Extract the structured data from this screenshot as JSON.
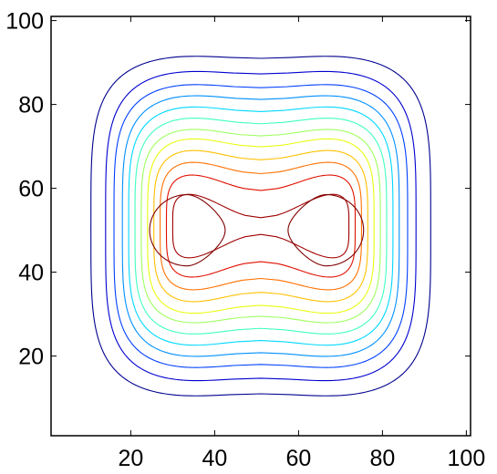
{
  "chart_data": {
    "type": "contour",
    "title": "",
    "xlabel": "",
    "ylabel": "",
    "xlim": [
      1,
      101
    ],
    "ylim": [
      1,
      101
    ],
    "xticks": [
      20,
      40,
      60,
      80,
      100
    ],
    "yticks": [
      20,
      40,
      60,
      80,
      100
    ],
    "x_tick_labels": [
      "20",
      "40",
      "60",
      "80",
      "100"
    ],
    "y_tick_labels": [
      "20",
      "40",
      "60",
      "80",
      "100"
    ],
    "colormap": "jet",
    "grid": false,
    "legend": "none",
    "contours": [
      {
        "level_index": 1,
        "color": "#00008f",
        "x_half_width": 40.5,
        "y_half_width": 41.0,
        "peanut": 1.0
      },
      {
        "level_index": 2,
        "color": "#0000cf",
        "x_half_width": 37.0,
        "y_half_width": 37.5,
        "peanut": 1.2
      },
      {
        "level_index": 3,
        "color": "#0040ff",
        "x_half_width": 35.0,
        "y_half_width": 34.5,
        "peanut": 1.5
      },
      {
        "level_index": 4,
        "color": "#0090ff",
        "x_half_width": 33.0,
        "y_half_width": 32.0,
        "peanut": 1.8
      },
      {
        "level_index": 5,
        "color": "#00d8ff",
        "x_half_width": 31.5,
        "y_half_width": 29.5,
        "peanut": 2.2
      },
      {
        "level_index": 6,
        "color": "#40ffbf",
        "x_half_width": 30.0,
        "y_half_width": 27.0,
        "peanut": 2.6
      },
      {
        "level_index": 7,
        "color": "#9fff60",
        "x_half_width": 28.5,
        "y_half_width": 24.5,
        "peanut": 3.0
      },
      {
        "level_index": 8,
        "color": "#e8ff10",
        "x_half_width": 27.0,
        "y_half_width": 22.5,
        "peanut": 3.6
      },
      {
        "level_index": 9,
        "color": "#ffc000",
        "x_half_width": 25.5,
        "y_half_width": 20.0,
        "peanut": 4.2
      },
      {
        "level_index": 10,
        "color": "#ff7000",
        "x_half_width": 24.0,
        "y_half_width": 17.5,
        "peanut": 5.0
      },
      {
        "level_index": 11,
        "color": "#e01000",
        "x_half_width": 22.5,
        "y_half_width": 15.0,
        "peanut": 6.5
      },
      {
        "level_index": 12,
        "color": "#a00000",
        "x_half_width": 21.0,
        "y_half_width": 11.0,
        "peanut": 9.0
      }
    ],
    "inner_loops": [
      {
        "color": "#800000",
        "center": [
          33.5,
          50
        ],
        "x_half_width": 9.0,
        "y_half_width": 8.5
      },
      {
        "color": "#800000",
        "center": [
          66.5,
          50
        ],
        "x_half_width": 9.0,
        "y_half_width": 8.5
      }
    ]
  }
}
